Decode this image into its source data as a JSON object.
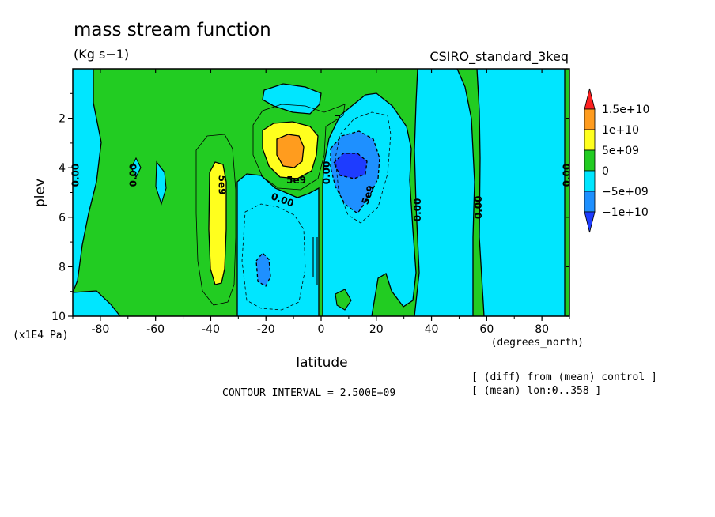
{
  "chart_data": {
    "type": "heatmap",
    "title": "mass stream function",
    "units": "(Kg s−1)",
    "dataset": "CSIRO_standard_3keq",
    "xlabel": "latitude",
    "x_units": "(degrees_north)",
    "ylabel": "plev",
    "y_units": "(x1E4 Pa)",
    "xlim": [
      -90,
      90
    ],
    "ylim": [
      10,
      0
    ],
    "x_ticks": [
      -80,
      -60,
      -40,
      -20,
      0,
      20,
      40,
      60,
      80
    ],
    "y_ticks": [
      2,
      4,
      6,
      8,
      10
    ],
    "contour_interval_text": "CONTOUR INTERVAL = 2.500E+09",
    "notes": [
      "[ (diff) from (mean) control ]",
      "[ (mean) lon:0..358 ]"
    ],
    "colorbar": {
      "labels": [
        "1.5e+10",
        "1e+10",
        "5e+09",
        "0",
        "−5e+09",
        "−1e+10"
      ],
      "colors": [
        "#ff2020",
        "#ff9c1e",
        "#ffff1e",
        "#22cc22",
        "#00e6ff",
        "#1e90ff",
        "#1e3cff"
      ]
    },
    "contour_labels": [
      {
        "text": "0.00",
        "lat": -89,
        "plev": 4.3,
        "rotate": -90
      },
      {
        "text": "0.00",
        "lat": -68,
        "plev": 4.3,
        "rotate": -90
      },
      {
        "text": "5e9",
        "lat": -36,
        "plev": 4.7,
        "rotate": 90
      },
      {
        "text": "5e9",
        "lat": -9,
        "plev": 4.5,
        "rotate": 0
      },
      {
        "text": "0.00",
        "lat": -14,
        "plev": 5.3,
        "rotate": 20
      },
      {
        "text": "0.00",
        "lat": 2,
        "plev": 4.2,
        "rotate": -90
      },
      {
        "text": "5e9",
        "lat": 17,
        "plev": 5.1,
        "rotate": -70
      },
      {
        "text": "0.00",
        "lat": 35,
        "plev": 5.7,
        "rotate": -90
      },
      {
        "text": "0.00",
        "lat": 57,
        "plev": 5.6,
        "rotate": -90
      },
      {
        "text": "0.00",
        "lat": 89,
        "plev": 4.3,
        "rotate": -90
      }
    ]
  }
}
